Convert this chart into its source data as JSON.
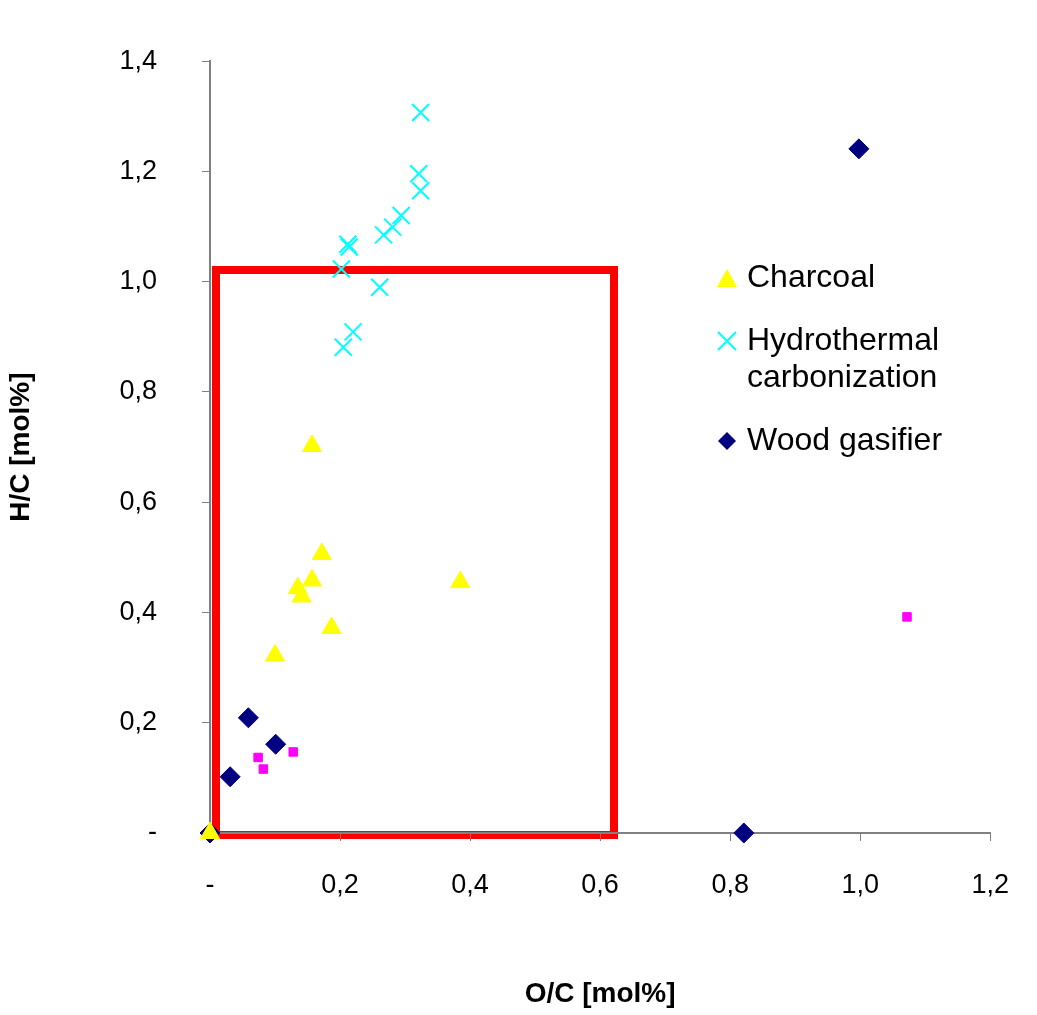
{
  "chart_data": {
    "type": "scatter",
    "xlabel": "O/C [mol%]",
    "ylabel": "H/C [mol%]",
    "xlim": [
      0,
      1.2
    ],
    "ylim": [
      0,
      1.4
    ],
    "xticks": [
      {
        "value": 0,
        "label": "-"
      },
      {
        "value": 0.2,
        "label": "0,2"
      },
      {
        "value": 0.4,
        "label": "0,4"
      },
      {
        "value": 0.6,
        "label": "0,6"
      },
      {
        "value": 0.8,
        "label": "0,8"
      },
      {
        "value": 1.0,
        "label": "1,0"
      },
      {
        "value": 1.2,
        "label": "1,2"
      }
    ],
    "yticks": [
      {
        "value": 0,
        "label": "-"
      },
      {
        "value": 0.2,
        "label": "0,2"
      },
      {
        "value": 0.4,
        "label": "0,4"
      },
      {
        "value": 0.6,
        "label": "0,6"
      },
      {
        "value": 0.8,
        "label": "0,8"
      },
      {
        "value": 1.0,
        "label": "1,0"
      },
      {
        "value": 1.2,
        "label": "1,2"
      },
      {
        "value": 1.4,
        "label": "1,4"
      }
    ],
    "grid": false,
    "legend": "right",
    "series": [
      {
        "color": "#ff00ff",
        "marker": "square",
        "x": [
          0.074,
          0.082,
          0.128,
          1.072
        ],
        "values": [
          0.137,
          0.116,
          0.147,
          0.392
        ]
      },
      {
        "name": "Charcoal",
        "color": "#ffff00",
        "marker": "triangle",
        "x": [
          0,
          0.1,
          0.135,
          0.141,
          0.157,
          0.157,
          0.172,
          0.187,
          0.385
        ],
        "values": [
          0,
          0.322,
          0.444,
          0.429,
          0.458,
          0.702,
          0.506,
          0.372,
          0.455
        ]
      },
      {
        "name": "Hydrothermal carbonization",
        "color": "#00ffff",
        "marker": "cross",
        "x": [
          0.324,
          0.321,
          0.324,
          0.294,
          0.281,
          0.267,
          0.212,
          0.214,
          0.202,
          0.261,
          0.22,
          0.205
        ],
        "values": [
          1.307,
          1.196,
          1.165,
          1.12,
          1.099,
          1.085,
          1.068,
          1.063,
          1.023,
          0.99,
          0.909,
          0.881
        ]
      },
      {
        "name": "Wood gasifier",
        "color": "#000080",
        "marker": "diamond",
        "x": [
          0,
          0.031,
          0.059,
          0.101,
          0.821,
          0.998
        ],
        "values": [
          0,
          0.102,
          0.209,
          0.161,
          0,
          1.241
        ]
      }
    ]
  }
}
